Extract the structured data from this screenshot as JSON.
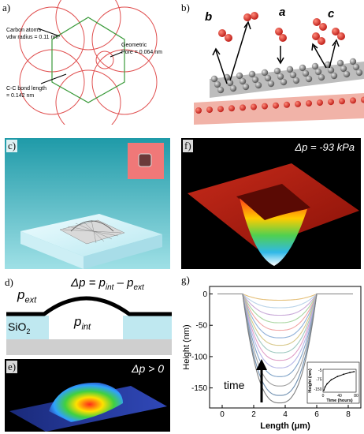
{
  "panel_a": {
    "label": "a)",
    "annot_carbon_1": "Carbon atoms",
    "annot_carbon_2": "vdw radius = 0.11 nm",
    "annot_pore_1": "Geometric",
    "annot_pore_2": "Pore = 0.064 nm",
    "annot_bond_1": "C-C bond length",
    "annot_bond_2": "= 0.142 nm"
  },
  "panel_b": {
    "label": "b)",
    "tag_b": "b",
    "tag_a": "a",
    "tag_c": "c"
  },
  "panel_c": {
    "label": "c)"
  },
  "panel_f": {
    "label": "f)",
    "pressure_text": "Δp = -93 kPa"
  },
  "panel_d": {
    "label": "d)",
    "p_ext": "p",
    "p_ext_sub": "ext",
    "p_int": "p",
    "p_int_sub": "int",
    "formula_prefix": "Δp = ",
    "formula_p1": "p",
    "formula_p1_sub": "int",
    "formula_mid": " – ",
    "formula_p2": "p",
    "formula_p2_sub": "ext",
    "sio2": "SiO",
    "sio2_sub": "2"
  },
  "panel_e": {
    "label": "e)",
    "pressure_text": "Δp > 0"
  },
  "panel_g": {
    "label": "g)",
    "ylabel": "Height (nm)",
    "xlabel": "Length (μm)",
    "time_label": "time",
    "inset_xlabel": "Time (hours)",
    "inset_ylabel": "Height (nm)"
  },
  "chart_data": {
    "type": "line",
    "xlabel": "Length (μm)",
    "ylabel": "Height (nm)",
    "xlim": [
      -0.8,
      8.8
    ],
    "ylim": [
      -182,
      12
    ],
    "xticks": [
      0,
      2,
      4,
      6,
      8
    ],
    "yticks": [
      0,
      -50,
      -100,
      -150
    ],
    "x_edges": [
      1.3,
      6.0
    ],
    "x_center": 3.65,
    "depths": [
      -10,
      -22,
      -34,
      -46,
      -58,
      -70,
      -82,
      -94,
      -106,
      -118,
      -132,
      -147,
      -162,
      -174
    ],
    "colors": [
      "#e5c07a",
      "#b9d3e8",
      "#c9a9d8",
      "#a8d5a0",
      "#f2a6a6",
      "#8fb0d8",
      "#d8c88a",
      "#9fc9c0",
      "#e0a0c8",
      "#b7b7e8",
      "#7fa3c8",
      "#a0a0a0",
      "#6f8fb0",
      "#808080"
    ],
    "inset": {
      "xlabel": "Time (hours)",
      "ylabel": "Height (nm)",
      "xticks": [
        0,
        40,
        80
      ],
      "yticks": [
        -5,
        -75,
        -150
      ],
      "xlim": [
        0,
        80
      ],
      "ylim": [
        -175,
        0
      ],
      "points": [
        [
          2,
          -160
        ],
        [
          5,
          -135
        ],
        [
          10,
          -110
        ],
        [
          20,
          -80
        ],
        [
          35,
          -55
        ],
        [
          50,
          -38
        ],
        [
          65,
          -25
        ],
        [
          75,
          -18
        ]
      ]
    }
  }
}
